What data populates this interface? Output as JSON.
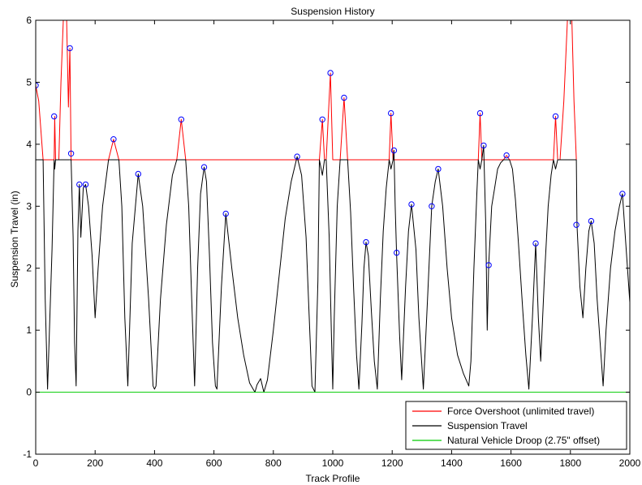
{
  "chart_data": {
    "type": "line",
    "title": "Suspension History",
    "xlabel": "Track Profile",
    "ylabel": "Suspension Travel (in)",
    "xlim": [
      0,
      2000
    ],
    "ylim": [
      -1,
      6
    ],
    "xticks": [
      0,
      200,
      400,
      600,
      800,
      1000,
      1200,
      1400,
      1600,
      1800,
      2000
    ],
    "yticks": [
      -1,
      0,
      1,
      2,
      3,
      4,
      5,
      6
    ],
    "grid": false,
    "legend_position": "bottom-right",
    "travel_limit": 3.75,
    "series": [
      {
        "name": "Force Overshoot (unlimited travel)",
        "color": "#ff0000",
        "points": [
          [
            0,
            4.95
          ],
          [
            10,
            4.7
          ],
          [
            25,
            3.75
          ],
          [
            62,
            3.75
          ],
          [
            64,
            4.45
          ],
          [
            67,
            3.75
          ],
          [
            78,
            3.75
          ],
          [
            85,
            5.0
          ],
          [
            93,
            6.0
          ],
          [
            104,
            6.0
          ],
          [
            110,
            4.6
          ],
          [
            115,
            5.55
          ],
          [
            119,
            3.75
          ],
          [
            245,
            3.75
          ],
          [
            262,
            4.08
          ],
          [
            280,
            3.75
          ],
          [
            475,
            3.75
          ],
          [
            490,
            4.4
          ],
          [
            505,
            3.75
          ],
          [
            955,
            3.75
          ],
          [
            965,
            4.4
          ],
          [
            972,
            3.75
          ],
          [
            978,
            3.75
          ],
          [
            992,
            5.15
          ],
          [
            1000,
            3.75
          ],
          [
            1025,
            3.75
          ],
          [
            1038,
            4.75
          ],
          [
            1050,
            3.75
          ],
          [
            1190,
            3.75
          ],
          [
            1196,
            4.5
          ],
          [
            1203,
            3.75
          ],
          [
            1490,
            3.75
          ],
          [
            1496,
            4.5
          ],
          [
            1502,
            3.75
          ],
          [
            1575,
            3.75
          ],
          [
            1585,
            3.82
          ],
          [
            1595,
            3.75
          ],
          [
            1743,
            3.75
          ],
          [
            1750,
            4.45
          ],
          [
            1757,
            3.75
          ],
          [
            1765,
            3.75
          ],
          [
            1778,
            4.7
          ],
          [
            1790,
            6.0
          ],
          [
            1805,
            6.0
          ],
          [
            1812,
            4.7
          ],
          [
            1820,
            3.75
          ]
        ]
      },
      {
        "name": "Suspension Travel",
        "color": "#000000",
        "points": [
          [
            0,
            3.75
          ],
          [
            25,
            3.75
          ],
          [
            32,
            1.5
          ],
          [
            40,
            0.05
          ],
          [
            55,
            2.3
          ],
          [
            62,
            3.75
          ],
          [
            64,
            3.6
          ],
          [
            67,
            3.75
          ],
          [
            119,
            3.75
          ],
          [
            126,
            2.5
          ],
          [
            131,
            0.8
          ],
          [
            136,
            0.1
          ],
          [
            142,
            2.6
          ],
          [
            147,
            3.35
          ],
          [
            152,
            2.5
          ],
          [
            160,
            3.3
          ],
          [
            168,
            3.35
          ],
          [
            178,
            3.0
          ],
          [
            190,
            2.2
          ],
          [
            200,
            1.2
          ],
          [
            210,
            2.0
          ],
          [
            225,
            3.0
          ],
          [
            245,
            3.75
          ],
          [
            280,
            3.75
          ],
          [
            290,
            3.0
          ],
          [
            300,
            1.2
          ],
          [
            310,
            0.1
          ],
          [
            325,
            2.4
          ],
          [
            345,
            3.52
          ],
          [
            360,
            3.0
          ],
          [
            380,
            1.5
          ],
          [
            395,
            0.1
          ],
          [
            400,
            0.05
          ],
          [
            405,
            0.1
          ],
          [
            420,
            1.5
          ],
          [
            440,
            2.7
          ],
          [
            460,
            3.5
          ],
          [
            475,
            3.75
          ],
          [
            505,
            3.75
          ],
          [
            515,
            3.0
          ],
          [
            525,
            1.5
          ],
          [
            535,
            0.1
          ],
          [
            545,
            2.0
          ],
          [
            555,
            3.2
          ],
          [
            567,
            3.63
          ],
          [
            575,
            3.4
          ],
          [
            585,
            2.2
          ],
          [
            595,
            0.8
          ],
          [
            605,
            0.1
          ],
          [
            610,
            0.05
          ],
          [
            625,
            1.7
          ],
          [
            640,
            2.88
          ],
          [
            660,
            2.0
          ],
          [
            680,
            1.2
          ],
          [
            700,
            0.6
          ],
          [
            720,
            0.15
          ],
          [
            738,
            0.0
          ],
          [
            745,
            0.12
          ],
          [
            757,
            0.22
          ],
          [
            768,
            0.0
          ],
          [
            780,
            0.2
          ],
          [
            800,
            1.0
          ],
          [
            820,
            1.9
          ],
          [
            840,
            2.8
          ],
          [
            860,
            3.4
          ],
          [
            880,
            3.8
          ],
          [
            895,
            3.5
          ],
          [
            910,
            2.5
          ],
          [
            920,
            1.3
          ],
          [
            930,
            0.1
          ],
          [
            940,
            0.0
          ],
          [
            950,
            1.8
          ],
          [
            955,
            3.75
          ],
          [
            965,
            3.5
          ],
          [
            972,
            3.75
          ],
          [
            978,
            3.75
          ],
          [
            988,
            2.5
          ],
          [
            995,
            1.0
          ],
          [
            1000,
            0.05
          ],
          [
            1005,
            1.2
          ],
          [
            1015,
            3.0
          ],
          [
            1025,
            3.75
          ],
          [
            1050,
            3.75
          ],
          [
            1060,
            2.9
          ],
          [
            1070,
            1.7
          ],
          [
            1080,
            0.6
          ],
          [
            1088,
            0.05
          ],
          [
            1098,
            1.1
          ],
          [
            1105,
            2.0
          ],
          [
            1112,
            2.42
          ],
          [
            1120,
            2.2
          ],
          [
            1130,
            1.3
          ],
          [
            1140,
            0.5
          ],
          [
            1150,
            0.05
          ],
          [
            1160,
            1.5
          ],
          [
            1170,
            2.6
          ],
          [
            1180,
            3.3
          ],
          [
            1190,
            3.75
          ],
          [
            1196,
            3.6
          ],
          [
            1203,
            3.75
          ],
          [
            1206,
            3.9
          ],
          [
            1210,
            3.0
          ],
          [
            1215,
            2.2
          ],
          [
            1225,
            0.9
          ],
          [
            1232,
            0.2
          ],
          [
            1245,
            1.7
          ],
          [
            1255,
            2.6
          ],
          [
            1265,
            3.03
          ],
          [
            1280,
            2.3
          ],
          [
            1290,
            1.2
          ],
          [
            1305,
            0.05
          ],
          [
            1320,
            1.6
          ],
          [
            1333,
            3.0
          ],
          [
            1345,
            3.4
          ],
          [
            1355,
            3.6
          ],
          [
            1370,
            3.0
          ],
          [
            1385,
            2.0
          ],
          [
            1400,
            1.2
          ],
          [
            1420,
            0.6
          ],
          [
            1440,
            0.3
          ],
          [
            1458,
            0.1
          ],
          [
            1465,
            0.5
          ],
          [
            1475,
            2.0
          ],
          [
            1485,
            3.2
          ],
          [
            1490,
            3.75
          ],
          [
            1496,
            3.6
          ],
          [
            1502,
            3.75
          ],
          [
            1508,
            3.98
          ],
          [
            1515,
            2.7
          ],
          [
            1520,
            1.0
          ],
          [
            1525,
            2.05
          ],
          [
            1535,
            3.0
          ],
          [
            1545,
            3.3
          ],
          [
            1555,
            3.6
          ],
          [
            1565,
            3.7
          ],
          [
            1575,
            3.75
          ],
          [
            1595,
            3.75
          ],
          [
            1605,
            3.6
          ],
          [
            1615,
            3.1
          ],
          [
            1625,
            2.4
          ],
          [
            1640,
            1.3
          ],
          [
            1650,
            0.6
          ],
          [
            1660,
            0.05
          ],
          [
            1672,
            1.2
          ],
          [
            1683,
            2.4
          ],
          [
            1692,
            1.2
          ],
          [
            1700,
            0.5
          ],
          [
            1712,
            1.8
          ],
          [
            1725,
            3.0
          ],
          [
            1735,
            3.5
          ],
          [
            1743,
            3.75
          ],
          [
            1750,
            3.6
          ],
          [
            1757,
            3.75
          ],
          [
            1820,
            3.75
          ],
          [
            1822,
            2.7
          ],
          [
            1832,
            1.7
          ],
          [
            1842,
            1.2
          ],
          [
            1852,
            2.0
          ],
          [
            1862,
            2.6
          ],
          [
            1870,
            2.76
          ],
          [
            1880,
            2.4
          ],
          [
            1890,
            1.5
          ],
          [
            1900,
            0.8
          ],
          [
            1910,
            0.1
          ],
          [
            1920,
            1.0
          ],
          [
            1935,
            2.0
          ],
          [
            1950,
            2.6
          ],
          [
            1965,
            3.0
          ],
          [
            1975,
            3.2
          ],
          [
            1985,
            2.5
          ],
          [
            2000,
            1.45
          ]
        ]
      },
      {
        "name": "Natural Vehicle Droop (2.75\" offset)",
        "color": "#00cc00",
        "points": [
          [
            0,
            0
          ],
          [
            2000,
            0
          ]
        ]
      }
    ],
    "markers": {
      "color": "#0000ff",
      "points": [
        [
          0,
          4.95
        ],
        [
          62,
          4.45
        ],
        [
          115,
          5.55
        ],
        [
          119,
          3.85
        ],
        [
          147,
          3.35
        ],
        [
          168,
          3.35
        ],
        [
          262,
          4.08
        ],
        [
          345,
          3.52
        ],
        [
          490,
          4.4
        ],
        [
          567,
          3.63
        ],
        [
          640,
          2.88
        ],
        [
          880,
          3.8
        ],
        [
          965,
          4.4
        ],
        [
          992,
          5.15
        ],
        [
          1038,
          4.75
        ],
        [
          1112,
          2.42
        ],
        [
          1196,
          4.5
        ],
        [
          1206,
          3.9
        ],
        [
          1215,
          2.25
        ],
        [
          1265,
          3.03
        ],
        [
          1333,
          3.0
        ],
        [
          1355,
          3.6
        ],
        [
          1496,
          4.5
        ],
        [
          1508,
          3.98
        ],
        [
          1525,
          2.05
        ],
        [
          1585,
          3.82
        ],
        [
          1683,
          2.4
        ],
        [
          1750,
          4.45
        ],
        [
          1820,
          2.7
        ],
        [
          1870,
          2.76
        ],
        [
          1975,
          3.2
        ]
      ]
    }
  }
}
